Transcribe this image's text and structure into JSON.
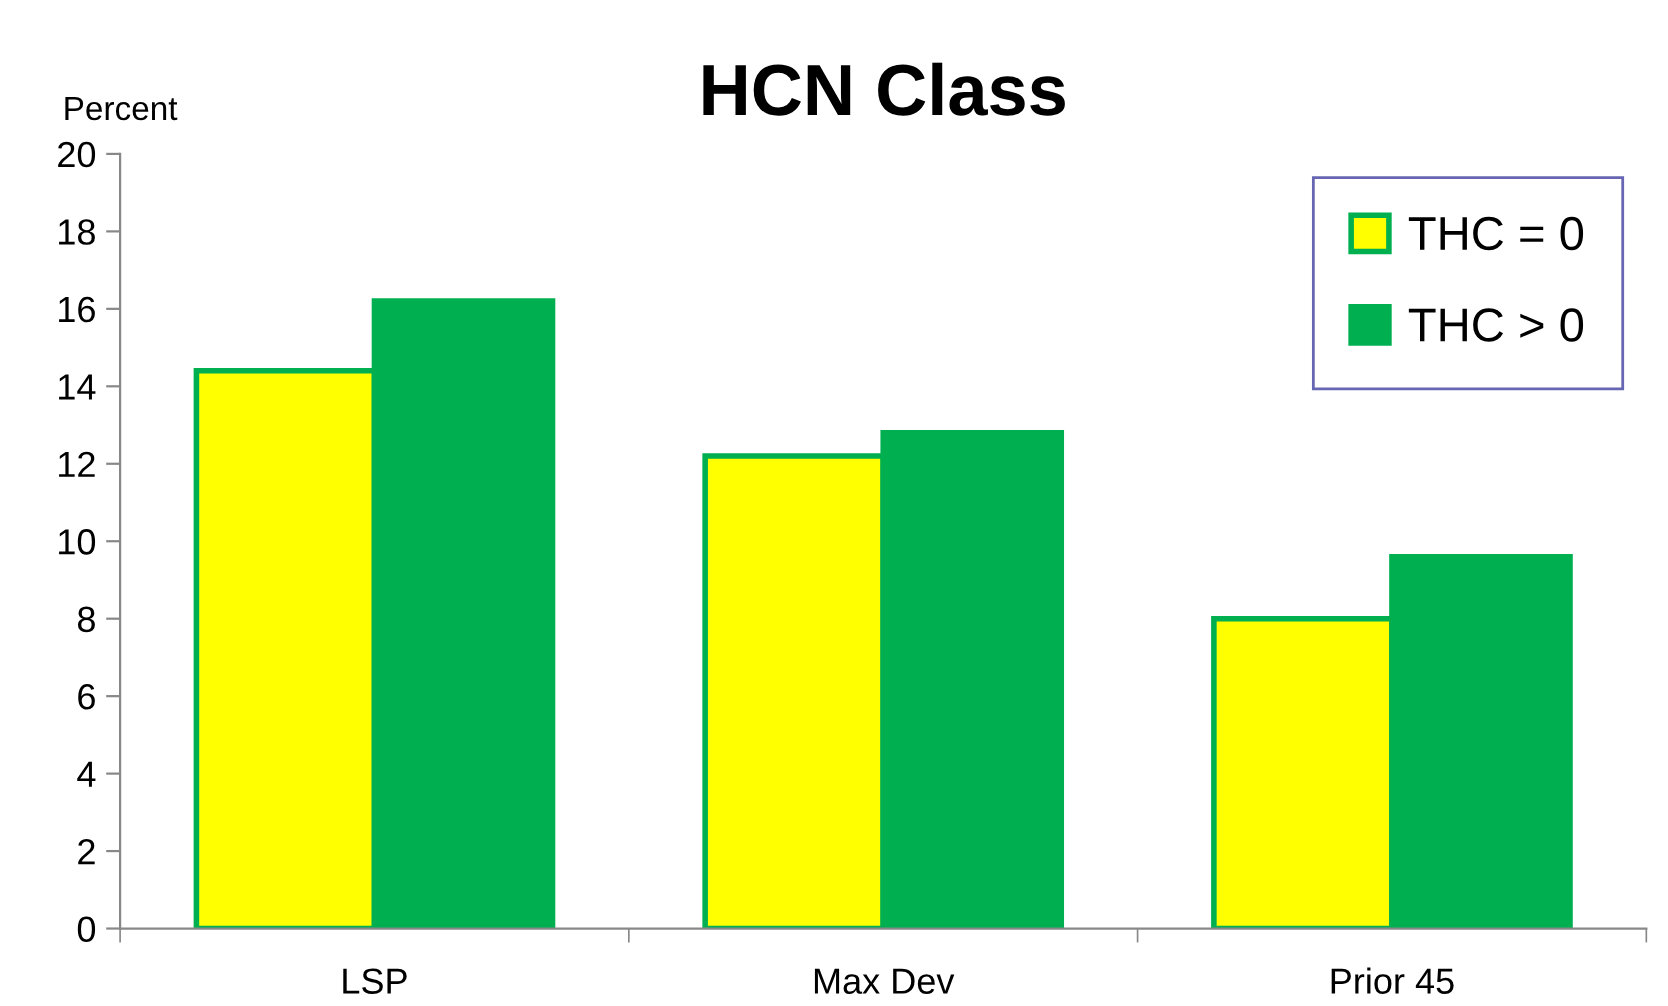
{
  "chart_data": {
    "type": "bar",
    "title": "HCN Class",
    "ylabel": "Percent",
    "categories": [
      "LSP",
      "Max Dev",
      "Prior 45"
    ],
    "series": [
      {
        "name": "THC = 0",
        "color": "#ffff00",
        "values": [
          14.4,
          12.2,
          8.0
        ]
      },
      {
        "name": "THC > 0",
        "color": "#00b050",
        "values": [
          16.2,
          12.8,
          9.6
        ]
      }
    ],
    "ylim": [
      0,
      20
    ],
    "yticks": [
      0,
      2,
      4,
      6,
      8,
      10,
      12,
      14,
      16,
      18,
      20
    ],
    "grid": false,
    "legend": "top right"
  }
}
